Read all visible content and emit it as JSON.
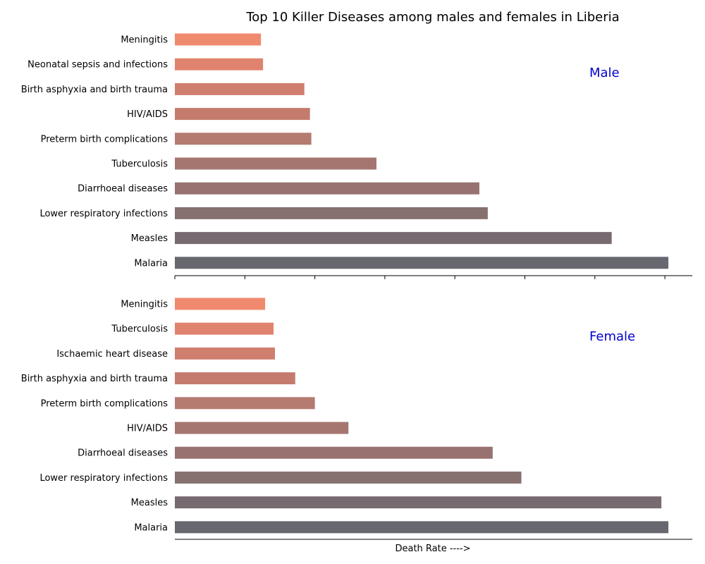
{
  "title": "Top 10 Killer Diseases among males and females in Liberia",
  "xlabel": "Death Rate ---->",
  "colors": [
    "#f08a6e",
    "#e0836e",
    "#d07e6e",
    "#c47b6e",
    "#b57a70",
    "#a57670",
    "#977270",
    "#877070",
    "#776a70",
    "#676770"
  ],
  "chart_data": [
    {
      "type": "bar",
      "orientation": "horizontal",
      "panel_label": "Male",
      "panel_label_color": "#0000cc",
      "categories": [
        "Meningitis",
        "Neonatal sepsis and infections",
        "Birth asphyxia and birth trauma",
        "HIV/AIDS",
        "Preterm birth complications",
        "Tuberculosis",
        "Diarrhoeal diseases",
        "Lower respiratory infections",
        "Measles",
        "Malaria"
      ],
      "values": [
        12.3,
        12.6,
        18.5,
        19.3,
        19.5,
        28.8,
        43.5,
        44.7,
        62.4,
        70.5
      ],
      "xlim": [
        0,
        74
      ]
    },
    {
      "type": "bar",
      "orientation": "horizontal",
      "panel_label": "Female",
      "panel_label_color": "#0000cc",
      "categories": [
        "Meningitis",
        "Tuberculosis",
        "Ischaemic heart disease",
        "Birth asphyxia and birth trauma",
        "Preterm birth complications",
        "HIV/AIDS",
        "Diarrhoeal diseases",
        "Lower respiratory infections",
        "Measles",
        "Malaria"
      ],
      "values": [
        12.9,
        14.1,
        14.3,
        17.2,
        20.0,
        24.8,
        45.4,
        49.5,
        69.5,
        70.5
      ],
      "xlim": [
        0,
        74
      ]
    }
  ]
}
